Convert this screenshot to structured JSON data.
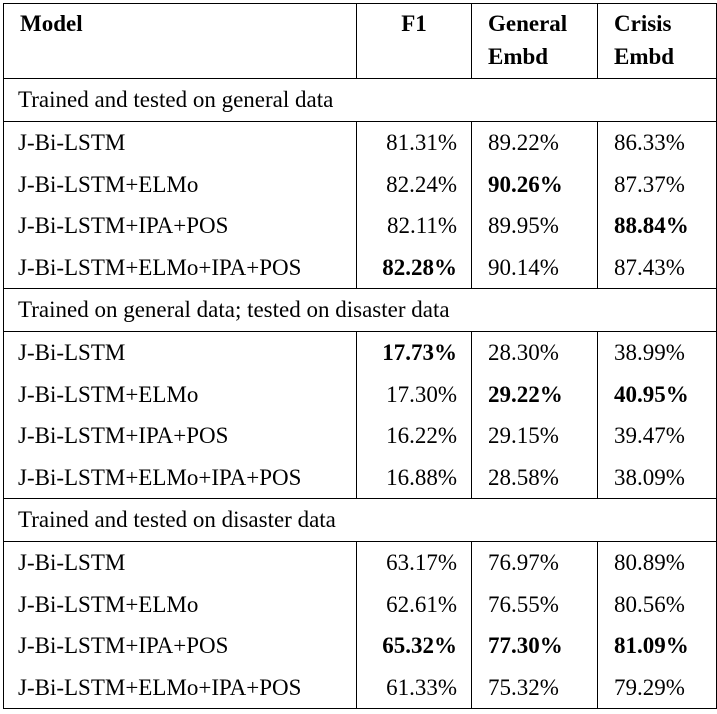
{
  "table": {
    "headers": {
      "model": "Model",
      "f1": "F1",
      "general_line1": "General",
      "general_line2": "Embd",
      "crisis_line1": "Crisis",
      "crisis_line2": "Embd"
    },
    "sections": [
      {
        "title": "Trained and tested on general data",
        "rows": [
          {
            "model": "J-Bi-LSTM",
            "f1": "81.31%",
            "general": "89.22%",
            "crisis": "86.33%"
          },
          {
            "model": "J-Bi-LSTM+ELMo",
            "f1": "82.24%",
            "general": "90.26%",
            "crisis": "87.37%"
          },
          {
            "model": "J-Bi-LSTM+IPA+POS",
            "f1": "82.11%",
            "general": "89.95%",
            "crisis": "88.84%"
          },
          {
            "model": "J-Bi-LSTM+ELMo+IPA+POS",
            "f1": "82.28%",
            "general": "90.14%",
            "crisis": "87.43%"
          }
        ]
      },
      {
        "title": "Trained on general data; tested on disaster data",
        "rows": [
          {
            "model": "J-Bi-LSTM",
            "f1": "17.73%",
            "general": "28.30%",
            "crisis": "38.99%"
          },
          {
            "model": "J-Bi-LSTM+ELMo",
            "f1": "17.30%",
            "general": "29.22%",
            "crisis": "40.95%"
          },
          {
            "model": "J-Bi-LSTM+IPA+POS",
            "f1": "16.22%",
            "general": "29.15%",
            "crisis": "39.47%"
          },
          {
            "model": "J-Bi-LSTM+ELMo+IPA+POS",
            "f1": "16.88%",
            "general": "28.58%",
            "crisis": "38.09%"
          }
        ]
      },
      {
        "title": "Trained and tested on disaster data",
        "rows": [
          {
            "model": "J-Bi-LSTM",
            "f1": "63.17%",
            "general": "76.97%",
            "crisis": "80.89%"
          },
          {
            "model": "J-Bi-LSTM+ELMo",
            "f1": "62.61%",
            "general": "76.55%",
            "crisis": "80.56%"
          },
          {
            "model": "J-Bi-LSTM+IPA+POS",
            "f1": "65.32%",
            "general": "77.30%",
            "crisis": "81.09%"
          },
          {
            "model": "J-Bi-LSTM+ELMo+IPA+POS",
            "f1": "61.33%",
            "general": "75.32%",
            "crisis": "79.29%"
          }
        ]
      }
    ]
  }
}
